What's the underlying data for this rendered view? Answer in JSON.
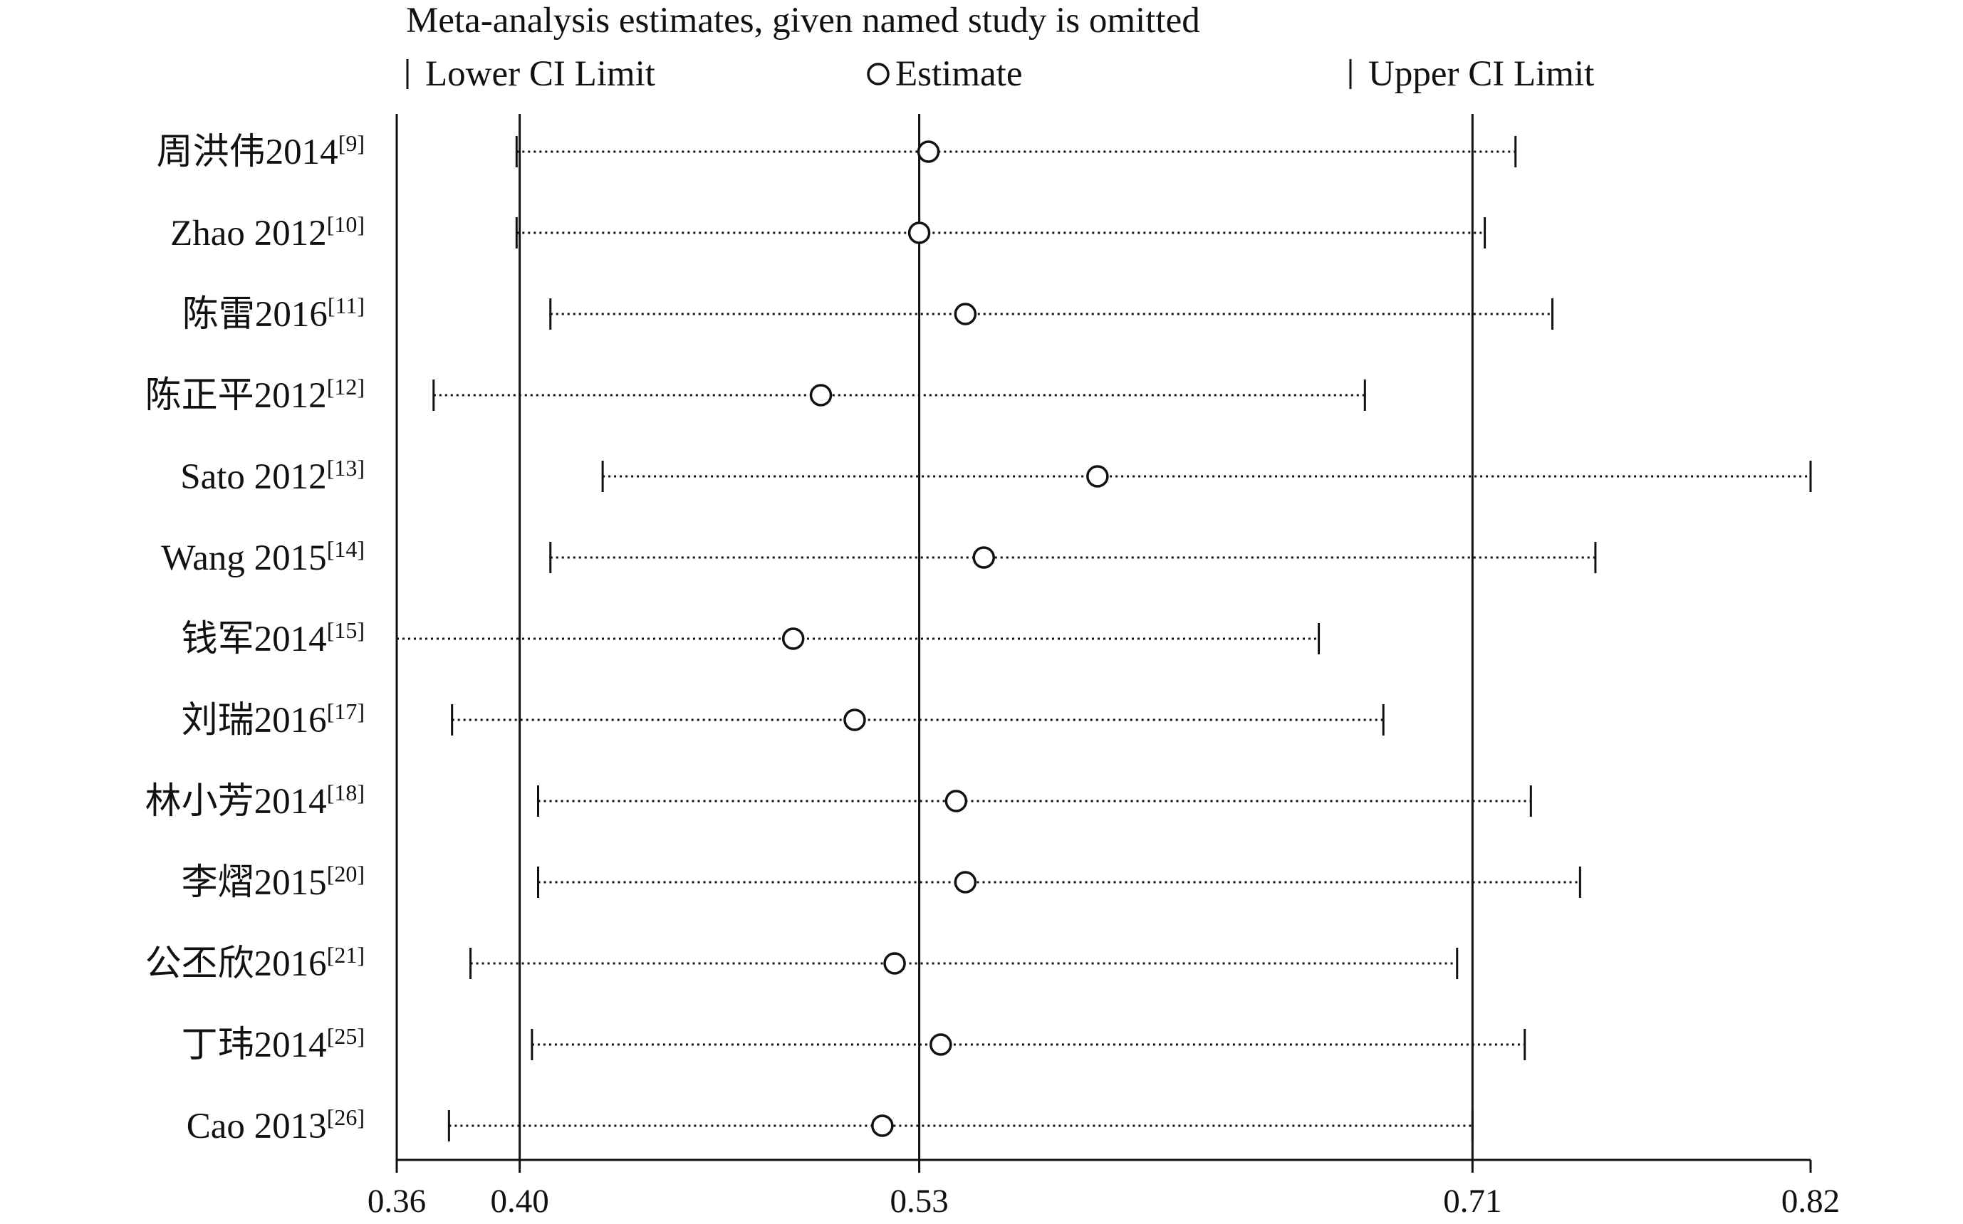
{
  "chart_data": {
    "type": "forest",
    "title": "Meta-analysis estimates, given named study is omitted",
    "legend": {
      "placement": "top",
      "items": [
        {
          "symbol": "bar",
          "label": "Lower CI Limit"
        },
        {
          "symbol": "circle",
          "label": "Estimate"
        },
        {
          "symbol": "bar",
          "label": "Upper CI Limit"
        }
      ]
    },
    "xlim": [
      0.36,
      0.82
    ],
    "xticks": [
      {
        "value": 0.36,
        "label": "0.36"
      },
      {
        "value": 0.4,
        "label": "0.40"
      },
      {
        "value": 0.53,
        "label": "0.53"
      },
      {
        "value": 0.71,
        "label": "0.71"
      },
      {
        "value": 0.82,
        "label": "0.82"
      }
    ],
    "reference_lines": [
      0.4,
      0.53,
      0.71
    ],
    "studies": [
      {
        "name": "周洪伟2014",
        "ref": "[9]",
        "estimate": 0.533,
        "lower": 0.399,
        "upper": 0.724
      },
      {
        "name": "Zhao 2012",
        "ref": "[10]",
        "estimate": 0.53,
        "lower": 0.399,
        "upper": 0.714
      },
      {
        "name": "陈雷2016",
        "ref": "[11]",
        "estimate": 0.545,
        "lower": 0.41,
        "upper": 0.736
      },
      {
        "name": "陈正平2012",
        "ref": "[12]",
        "estimate": 0.498,
        "lower": 0.372,
        "upper": 0.675
      },
      {
        "name": "Sato 2012",
        "ref": "[13]",
        "estimate": 0.588,
        "lower": 0.427,
        "upper": 0.82
      },
      {
        "name": "Wang 2015",
        "ref": "[14]",
        "estimate": 0.551,
        "lower": 0.41,
        "upper": 0.75
      },
      {
        "name": "钱军2014",
        "ref": "[15]",
        "estimate": 0.489,
        "lower": 0.36,
        "upper": 0.66
      },
      {
        "name": "刘瑞2016",
        "ref": "[17]",
        "estimate": 0.509,
        "lower": 0.378,
        "upper": 0.681
      },
      {
        "name": "林小芳2014",
        "ref": "[18]",
        "estimate": 0.542,
        "lower": 0.406,
        "upper": 0.729
      },
      {
        "name": "李熠2015",
        "ref": "[20]",
        "estimate": 0.545,
        "lower": 0.406,
        "upper": 0.745
      },
      {
        "name": "公丕欣2016",
        "ref": "[21]",
        "estimate": 0.522,
        "lower": 0.384,
        "upper": 0.705
      },
      {
        "name": "丁玮2014",
        "ref": "[25]",
        "estimate": 0.537,
        "lower": 0.404,
        "upper": 0.727
      },
      {
        "name": "Cao 2013",
        "ref": "[26]",
        "estimate": 0.518,
        "lower": 0.377,
        "upper": 0.71
      }
    ]
  }
}
